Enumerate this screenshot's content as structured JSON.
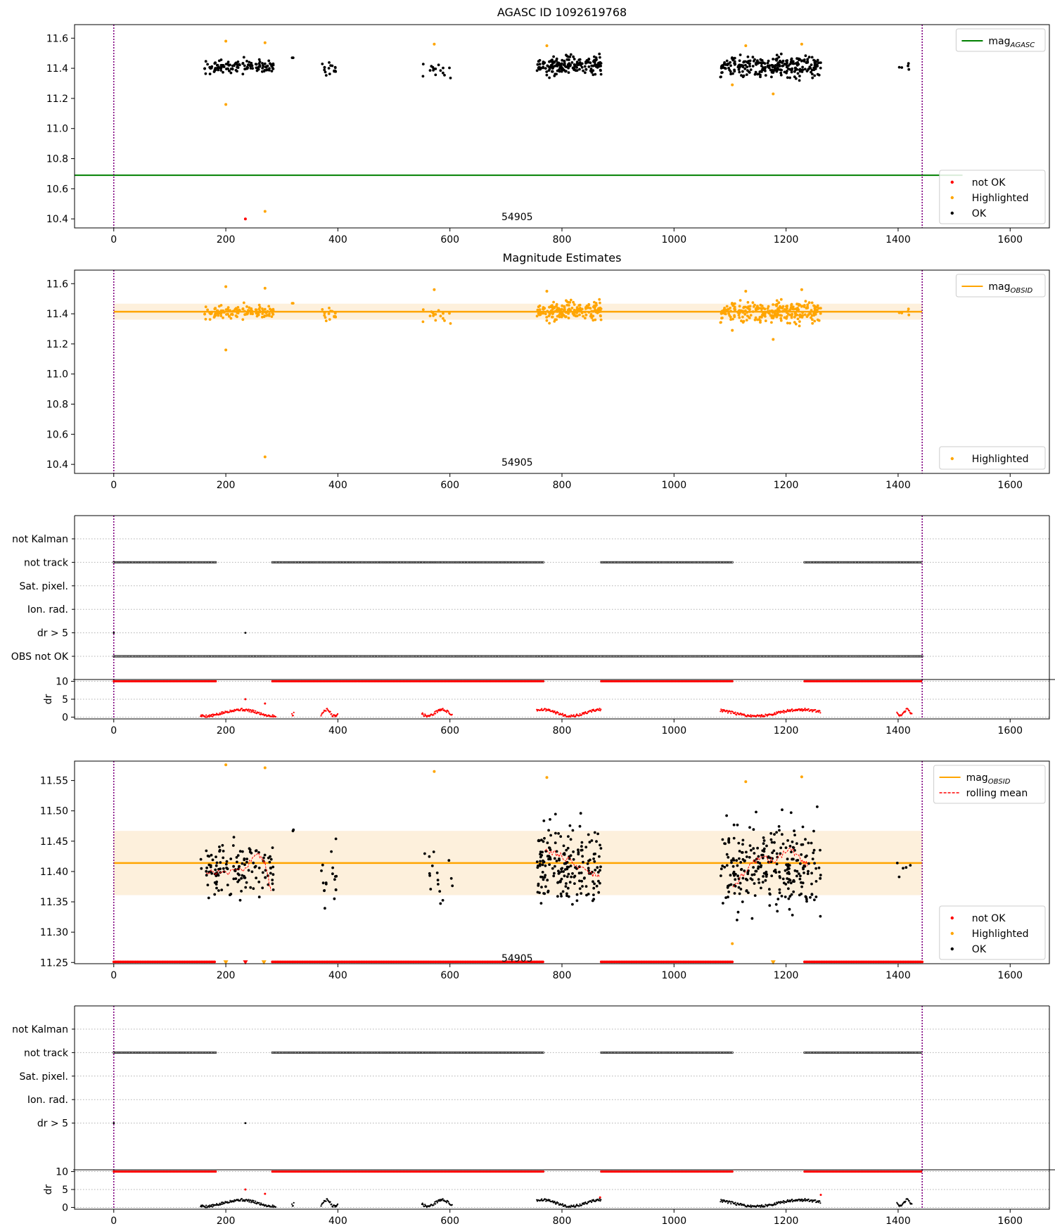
{
  "figure": {
    "background": "#ffffff",
    "colors": {
      "ok": "#000000",
      "not_ok": "#ff0000",
      "highlighted": "#ffa500",
      "mag_agasc": "#008000",
      "mag_obsid": "#ffa500",
      "band": "#fdf0dc",
      "vline": "#800080",
      "grid": "#b0b0b0"
    }
  },
  "chart_data": [
    {
      "id": "agasc",
      "type": "scatter",
      "title": "AGASC ID 1092619768",
      "x_range": [
        -70,
        1670
      ],
      "y_range": [
        10.34,
        11.69
      ],
      "x_ticks": [
        0,
        200,
        400,
        600,
        800,
        1000,
        1200,
        1400,
        1600
      ],
      "y_ticks": [
        10.4,
        10.6,
        10.8,
        11.0,
        11.2,
        11.4,
        11.6
      ],
      "y_tick_format": 1,
      "vlines": [
        0,
        1443
      ],
      "annotation": {
        "text": "54905",
        "x": 720,
        "y": 10.4
      },
      "hline": {
        "y": 10.69,
        "x_from": -70,
        "x_to": 1515,
        "color": "#008000",
        "width": 2
      },
      "legends": [
        {
          "pos": "top-right",
          "entries": [
            {
              "kind": "line",
              "color": "#008000",
              "label": "mag",
              "sub": "AGASC"
            }
          ]
        },
        {
          "pos": "bottom-right",
          "entries": [
            {
              "kind": "dot",
              "color": "#ff0000",
              "label": "not OK"
            },
            {
              "kind": "dot",
              "color": "#ffa500",
              "label": "Highlighted"
            },
            {
              "kind": "dot",
              "color": "#000000",
              "label": "OK"
            }
          ]
        }
      ],
      "series": [
        {
          "name": "OK",
          "style": "cloud",
          "color": "#000000",
          "clusters": [
            [
              155,
              285,
              11.41,
              0.1,
              130
            ],
            [
              318,
              322,
              11.47,
              0.01,
              2
            ],
            [
              370,
              400,
              11.39,
              0.12,
              18
            ],
            [
              550,
              605,
              11.39,
              0.12,
              16
            ],
            [
              755,
              870,
              11.42,
              0.15,
              190
            ],
            [
              1083,
              1262,
              11.41,
              0.16,
              270
            ],
            [
              1398,
              1425,
              11.41,
              0.05,
              5
            ]
          ]
        },
        {
          "name": "Highlighted",
          "style": "points",
          "color": "#ffa500",
          "points": [
            [
              200,
              11.58
            ],
            [
              200,
              11.16
            ],
            [
              270,
              11.57
            ],
            [
              270,
              10.45
            ],
            [
              572,
              11.56
            ],
            [
              773,
              11.55
            ],
            [
              1128,
              11.55
            ],
            [
              1104,
              11.29
            ],
            [
              1177,
              11.23
            ],
            [
              1228,
              11.56
            ]
          ]
        },
        {
          "name": "not OK",
          "style": "points",
          "color": "#ff0000",
          "points": [
            [
              235,
              10.4
            ]
          ]
        }
      ]
    },
    {
      "id": "magest",
      "type": "scatter",
      "title": "Magnitude Estimates",
      "x_range": [
        -70,
        1670
      ],
      "y_range": [
        10.34,
        11.69
      ],
      "x_ticks": [
        0,
        200,
        400,
        600,
        800,
        1000,
        1200,
        1400,
        1600
      ],
      "y_ticks": [
        10.4,
        10.6,
        10.8,
        11.0,
        11.2,
        11.4,
        11.6
      ],
      "y_tick_format": 1,
      "vlines": [
        0,
        1443
      ],
      "annotation": {
        "text": "54905",
        "x": 720,
        "y": 10.4
      },
      "band": {
        "y_from": 11.361,
        "y_to": 11.467,
        "x_from": 0,
        "x_to": 1443,
        "color": "#fdf0dc"
      },
      "hline": {
        "y": 11.414,
        "x_from": 0,
        "x_to": 1443,
        "color": "#ffa500",
        "width": 2.5
      },
      "legends": [
        {
          "pos": "top-right",
          "entries": [
            {
              "kind": "line",
              "color": "#ffa500",
              "label": "mag",
              "sub": "OBSID"
            }
          ]
        },
        {
          "pos": "bottom-right",
          "entries": [
            {
              "kind": "dot",
              "color": "#ffa500",
              "label": "Highlighted"
            }
          ]
        }
      ],
      "series": [
        {
          "name": "Highlighted",
          "style": "cloud",
          "color": "#ffa500",
          "clusters": [
            [
              155,
              285,
              11.41,
              0.1,
              130
            ],
            [
              318,
              322,
              11.47,
              0.01,
              2
            ],
            [
              370,
              400,
              11.39,
              0.12,
              18
            ],
            [
              550,
              605,
              11.39,
              0.12,
              16
            ],
            [
              755,
              870,
              11.42,
              0.15,
              190
            ],
            [
              1083,
              1262,
              11.41,
              0.16,
              270
            ],
            [
              1398,
              1425,
              11.41,
              0.05,
              5
            ]
          ]
        },
        {
          "name": "Highlighted-extra",
          "style": "points",
          "color": "#ffa500",
          "points": [
            [
              200,
              11.58
            ],
            [
              200,
              11.16
            ],
            [
              270,
              11.57
            ],
            [
              270,
              10.45
            ],
            [
              572,
              11.56
            ],
            [
              773,
              11.55
            ],
            [
              1128,
              11.55
            ],
            [
              1104,
              11.29
            ],
            [
              1177,
              11.23
            ],
            [
              1228,
              11.56
            ]
          ]
        }
      ]
    },
    {
      "id": "flags1",
      "type": "scatter",
      "x_range": [
        -70,
        1670
      ],
      "categories": [
        "not Kalman",
        "not track",
        "Sat. pixel.",
        "Ion. rad.",
        "dr > 5",
        "OBS not OK"
      ],
      "vlines": [
        0,
        1443
      ],
      "tracks": [
        {
          "category": "not track",
          "color": "#000000",
          "segments": [
            [
              0,
              182
            ],
            [
              283,
              768
            ],
            [
              870,
              1105
            ],
            [
              1233,
              1443
            ]
          ]
        },
        {
          "category": "OBS not OK",
          "color": "#000000",
          "segments": [
            [
              0,
              1443
            ]
          ]
        },
        {
          "category": "dr > 5",
          "color": "#000000",
          "points": [
            0,
            235
          ]
        }
      ]
    },
    {
      "id": "dr1",
      "type": "scatter",
      "ylabel": "dr",
      "x_range": [
        -70,
        1670
      ],
      "y_range": [
        -0.5,
        10.5
      ],
      "x_ticks": [
        0,
        200,
        400,
        600,
        800,
        1000,
        1200,
        1400,
        1600
      ],
      "y_ticks": [
        0,
        5,
        10
      ],
      "y_tick_format": 0,
      "vlines": [
        0,
        1443
      ],
      "top_markers": {
        "y": 10,
        "color": "#ff0000",
        "segments": [
          [
            0,
            182
          ],
          [
            283,
            768
          ],
          [
            870,
            1105
          ],
          [
            1233,
            1443
          ]
        ]
      },
      "series": [
        {
          "name": "dr",
          "style": "wave",
          "color": "#ff0000",
          "segments": [
            [
              155,
              290
            ],
            [
              318,
              322
            ],
            [
              370,
              400
            ],
            [
              550,
              605
            ],
            [
              755,
              870
            ],
            [
              1083,
              1262
            ],
            [
              1398,
              1425
            ]
          ]
        },
        {
          "name": "dr-extra",
          "style": "points",
          "color": "#ff0000",
          "points": [
            [
              235,
              5
            ],
            [
              270,
              3.8
            ]
          ]
        }
      ]
    },
    {
      "id": "detail",
      "type": "scatter",
      "x_range": [
        -70,
        1670
      ],
      "y_range": [
        11.248,
        11.582
      ],
      "x_ticks": [
        0,
        200,
        400,
        600,
        800,
        1000,
        1200,
        1400,
        1600
      ],
      "y_ticks": [
        11.25,
        11.3,
        11.35,
        11.4,
        11.45,
        11.5,
        11.55
      ],
      "y_tick_format": 2,
      "vlines": [
        0,
        1443
      ],
      "annotation": {
        "text": "54905",
        "x": 720,
        "y": 11.254
      },
      "band": {
        "y_from": 11.361,
        "y_to": 11.467,
        "x_from": 0,
        "x_to": 1443,
        "color": "#fdf0dc"
      },
      "hline": {
        "y": 11.414,
        "x_from": 0,
        "x_to": 1443,
        "color": "#ffa500",
        "width": 2.5
      },
      "bottom_markers": {
        "y": 11.251,
        "color": "#ff0000",
        "segments": [
          [
            0,
            182
          ],
          [
            283,
            768
          ],
          [
            870,
            1105
          ],
          [
            1233,
            1443
          ]
        ]
      },
      "legends": [
        {
          "pos": "top-right",
          "entries": [
            {
              "kind": "line",
              "color": "#ffa500",
              "label": "mag",
              "sub": "OBSID"
            },
            {
              "kind": "dash",
              "color": "#ff0000",
              "label": "rolling mean"
            }
          ]
        },
        {
          "pos": "bottom-right",
          "entries": [
            {
              "kind": "dot",
              "color": "#ff0000",
              "label": "not OK"
            },
            {
              "kind": "dot",
              "color": "#ffa500",
              "label": "Highlighted"
            },
            {
              "kind": "dot",
              "color": "#000000",
              "label": "OK"
            }
          ]
        }
      ],
      "series": [
        {
          "name": "OK",
          "style": "cloud",
          "color": "#000000",
          "clusters": [
            [
              155,
              285,
              11.405,
              0.1,
              130
            ],
            [
              318,
              322,
              11.47,
              0.01,
              2
            ],
            [
              370,
              400,
              11.39,
              0.14,
              18
            ],
            [
              550,
              605,
              11.39,
              0.12,
              16
            ],
            [
              755,
              870,
              11.41,
              0.16,
              190
            ],
            [
              1083,
              1262,
              11.405,
              0.17,
              270
            ],
            [
              1398,
              1425,
              11.41,
              0.05,
              5
            ]
          ]
        },
        {
          "name": "rolling mean",
          "style": "rolling",
          "color": "#ff0000",
          "segments": [
            [
              [
                165,
                11.4
              ],
              [
                200,
                11.398
              ],
              [
                235,
                11.405
              ],
              [
                255,
                11.43
              ],
              [
                270,
                11.415
              ],
              [
                282,
                11.36
              ]
            ],
            [
              [
                770,
                11.435
              ],
              [
                790,
                11.43
              ],
              [
                810,
                11.42
              ],
              [
                835,
                11.405
              ],
              [
                855,
                11.395
              ],
              [
                868,
                11.39
              ]
            ],
            [
              [
                1105,
                11.37
              ],
              [
                1130,
                11.405
              ],
              [
                1155,
                11.425
              ],
              [
                1180,
                11.415
              ],
              [
                1205,
                11.44
              ],
              [
                1225,
                11.42
              ],
              [
                1240,
                11.41
              ]
            ]
          ]
        },
        {
          "name": "Highlighted",
          "style": "points",
          "color": "#ffa500",
          "points": [
            [
              200,
              11.576
            ],
            [
              270,
              11.571
            ],
            [
              572,
              11.565
            ],
            [
              773,
              11.555
            ],
            [
              1128,
              11.548
            ],
            [
              1104,
              11.281
            ],
            [
              1228,
              11.556
            ]
          ]
        },
        {
          "name": "Highlighted-floor",
          "style": "triangles",
          "color": "#ffa500",
          "points": [
            [
              200,
              11.25
            ],
            [
              268,
              11.25
            ],
            [
              1177,
              11.25
            ]
          ]
        },
        {
          "name": "not OK-floor",
          "style": "triangles",
          "color": "#ff0000",
          "points": [
            [
              235,
              11.25
            ]
          ]
        }
      ]
    },
    {
      "id": "flags2",
      "type": "scatter",
      "x_range": [
        -70,
        1670
      ],
      "categories": [
        "not Kalman",
        "not track",
        "Sat. pixel.",
        "Ion. rad.",
        "dr > 5"
      ],
      "vlines": [
        0,
        1443
      ],
      "tracks": [
        {
          "category": "not track",
          "color": "#000000",
          "segments": [
            [
              0,
              182
            ],
            [
              283,
              768
            ],
            [
              870,
              1105
            ],
            [
              1233,
              1443
            ]
          ]
        },
        {
          "category": "dr > 5",
          "color": "#000000",
          "points": [
            0,
            235
          ]
        }
      ]
    },
    {
      "id": "dr2",
      "type": "scatter",
      "ylabel": "dr",
      "x_range": [
        -70,
        1670
      ],
      "y_range": [
        -0.5,
        10.5
      ],
      "x_ticks": [
        0,
        200,
        400,
        600,
        800,
        1000,
        1200,
        1400,
        1600
      ],
      "y_ticks": [
        0,
        5,
        10
      ],
      "y_tick_format": 0,
      "vlines": [
        0,
        1443
      ],
      "top_markers": {
        "y": 10,
        "color": "#ff0000",
        "segments": [
          [
            0,
            182
          ],
          [
            283,
            768
          ],
          [
            870,
            1105
          ],
          [
            1233,
            1443
          ]
        ]
      },
      "series": [
        {
          "name": "dr",
          "style": "wave",
          "color": "#000000",
          "segments": [
            [
              155,
              290
            ],
            [
              318,
              322
            ],
            [
              370,
              400
            ],
            [
              550,
              605
            ],
            [
              755,
              870
            ],
            [
              1083,
              1262
            ],
            [
              1398,
              1425
            ]
          ]
        },
        {
          "name": "dr-extra",
          "style": "points",
          "color": "#ff0000",
          "points": [
            [
              235,
              5
            ],
            [
              270,
              3.8
            ],
            [
              868,
              2.8
            ],
            [
              1262,
              3.5
            ]
          ]
        }
      ]
    }
  ]
}
